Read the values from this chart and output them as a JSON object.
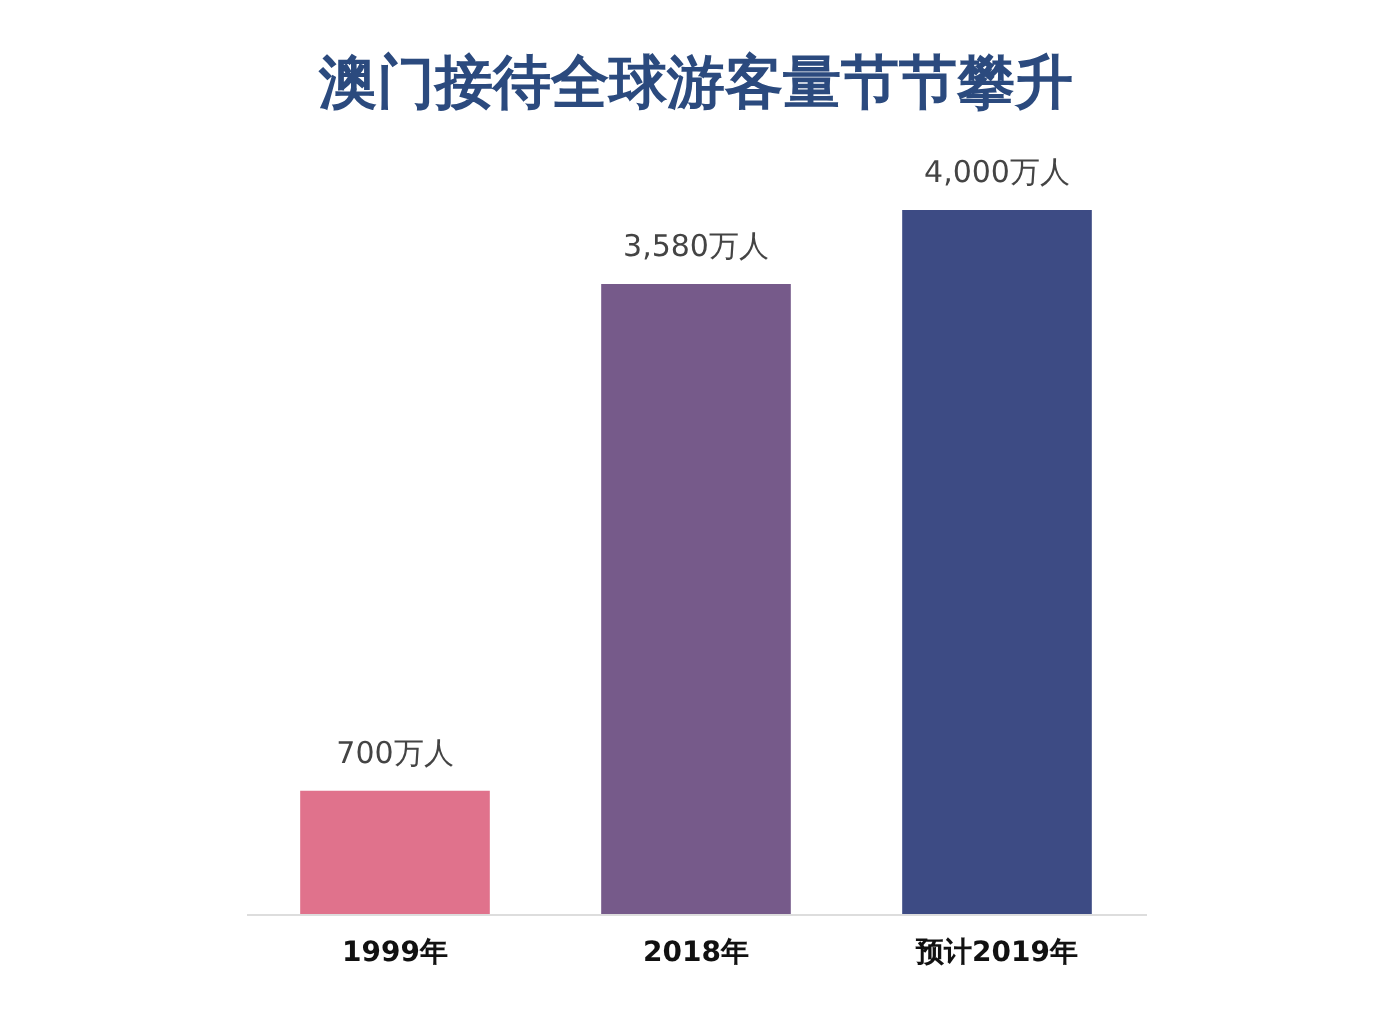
{
  "chart_data": {
    "type": "bar",
    "title": "澳门接待全球游客量节节攀升",
    "categories": [
      "1999年",
      "2018年",
      "预计2019年"
    ],
    "values": [
      700,
      3580,
      4000
    ],
    "value_labels": [
      "700万人",
      "3,580万人",
      "4,000万人"
    ],
    "colors": [
      "#e0728c",
      "#765a8a",
      "#3d4b84"
    ]
  }
}
